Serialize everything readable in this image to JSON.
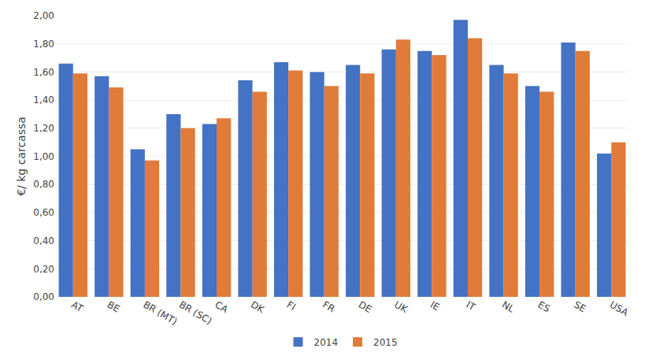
{
  "chart_data": {
    "type": "bar",
    "categories": [
      "AT",
      "BE",
      "BR (MT)",
      "BR (SC)",
      "CA",
      "DK",
      "FI",
      "FR",
      "DE",
      "UK",
      "IE",
      "IT",
      "NL",
      "ES",
      "SE",
      "USA"
    ],
    "series": [
      {
        "name": "2014",
        "color": "#4472C4",
        "values": [
          1.66,
          1.57,
          1.05,
          1.3,
          1.23,
          1.54,
          1.67,
          1.6,
          1.65,
          1.76,
          1.75,
          1.97,
          1.65,
          1.5,
          1.81,
          1.02
        ]
      },
      {
        "name": "2015",
        "color": "#E07B39",
        "values": [
          1.59,
          1.49,
          0.97,
          1.2,
          1.27,
          1.46,
          1.61,
          1.5,
          1.59,
          1.83,
          1.72,
          1.84,
          1.59,
          1.46,
          1.75,
          1.1
        ]
      }
    ],
    "ylabel": "€/ kg carcassa",
    "ylim": [
      0,
      2.0
    ],
    "yticks": [
      {
        "value": 0.0,
        "label": "0,00"
      },
      {
        "value": 0.2,
        "label": "0,20"
      },
      {
        "value": 0.4,
        "label": "0,40"
      },
      {
        "value": 0.6,
        "label": "0,60"
      },
      {
        "value": 0.8,
        "label": "0,80"
      },
      {
        "value": 1.0,
        "label": "1,00"
      },
      {
        "value": 1.2,
        "label": "1,20"
      },
      {
        "value": 1.4,
        "label": "1,40"
      },
      {
        "value": 1.6,
        "label": "1,60"
      },
      {
        "value": 1.8,
        "label": "1,80"
      },
      {
        "value": 2.0,
        "label": "2,00"
      }
    ],
    "grid": true,
    "legend": "bottom"
  }
}
